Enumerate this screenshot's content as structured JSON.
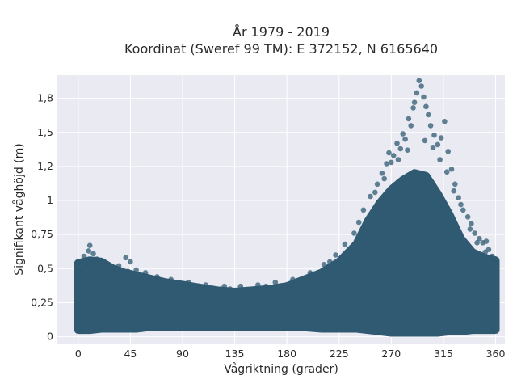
{
  "chart_data": {
    "type": "scatter",
    "title": "År 1979 - 2019",
    "subtitle": "Koordinat (Sweref 99 TM): E 372152, N 6165640",
    "xlabel": "Vågriktning (grader)",
    "ylabel": "Signifikant våghöjd (m)",
    "xlim": [
      -18,
      368
    ],
    "ylim": [
      -0.05,
      1.92
    ],
    "x_ticks": [
      0,
      45,
      90,
      135,
      180,
      225,
      270,
      315,
      360
    ],
    "x_tick_labels": [
      "0",
      "45",
      "90",
      "135",
      "180",
      "225",
      "270",
      "315",
      "360"
    ],
    "y_ticks": [
      0,
      0.25,
      0.5,
      0.75,
      1,
      1.25,
      1.5,
      1.75
    ],
    "y_tick_labels": [
      "0",
      "0,25",
      "0,5",
      "0,75",
      "1",
      "1,2",
      "1,5",
      "1,8"
    ],
    "grid": true,
    "marker_color": "#2f5a72",
    "plot_background": "#eaeaf2",
    "envelope": {
      "direction": [
        0,
        10,
        20,
        30,
        40,
        50,
        60,
        75,
        90,
        105,
        120,
        135,
        150,
        165,
        180,
        195,
        210,
        225,
        240,
        250,
        260,
        270,
        280,
        290,
        300,
        310,
        320,
        330,
        340,
        350,
        360
      ],
      "upper_hs": [
        0.54,
        0.56,
        0.55,
        0.5,
        0.47,
        0.45,
        0.43,
        0.4,
        0.38,
        0.36,
        0.34,
        0.33,
        0.34,
        0.35,
        0.37,
        0.42,
        0.47,
        0.55,
        0.68,
        0.85,
        0.98,
        1.08,
        1.15,
        1.2,
        1.18,
        1.05,
        0.9,
        0.72,
        0.62,
        0.58,
        0.56
      ],
      "lower_hs": [
        0.05,
        0.05,
        0.06,
        0.06,
        0.06,
        0.06,
        0.07,
        0.07,
        0.07,
        0.07,
        0.07,
        0.07,
        0.07,
        0.07,
        0.07,
        0.07,
        0.06,
        0.06,
        0.06,
        0.05,
        0.04,
        0.03,
        0.03,
        0.03,
        0.03,
        0.03,
        0.04,
        0.04,
        0.05,
        0.05,
        0.05
      ]
    },
    "points": [
      {
        "x": 0,
        "y": 0.55
      },
      {
        "x": 5,
        "y": 0.59
      },
      {
        "x": 9,
        "y": 0.63
      },
      {
        "x": 10,
        "y": 0.67
      },
      {
        "x": 13,
        "y": 0.61
      },
      {
        "x": 16,
        "y": 0.57
      },
      {
        "x": 18,
        "y": 0.52
      },
      {
        "x": 22,
        "y": 0.55
      },
      {
        "x": 25,
        "y": 0.51
      },
      {
        "x": 30,
        "y": 0.49
      },
      {
        "x": 35,
        "y": 0.52
      },
      {
        "x": 41,
        "y": 0.58
      },
      {
        "x": 45,
        "y": 0.55
      },
      {
        "x": 50,
        "y": 0.49
      },
      {
        "x": 58,
        "y": 0.47
      },
      {
        "x": 68,
        "y": 0.44
      },
      {
        "x": 80,
        "y": 0.42
      },
      {
        "x": 95,
        "y": 0.4
      },
      {
        "x": 110,
        "y": 0.38
      },
      {
        "x": 126,
        "y": 0.37
      },
      {
        "x": 140,
        "y": 0.37
      },
      {
        "x": 155,
        "y": 0.38
      },
      {
        "x": 170,
        "y": 0.4
      },
      {
        "x": 185,
        "y": 0.42
      },
      {
        "x": 200,
        "y": 0.47
      },
      {
        "x": 212,
        "y": 0.53
      },
      {
        "x": 222,
        "y": 0.6
      },
      {
        "x": 230,
        "y": 0.68
      },
      {
        "x": 238,
        "y": 0.76
      },
      {
        "x": 246,
        "y": 0.93
      },
      {
        "x": 252,
        "y": 1.03
      },
      {
        "x": 258,
        "y": 1.12
      },
      {
        "x": 262,
        "y": 1.2
      },
      {
        "x": 266,
        "y": 1.27
      },
      {
        "x": 268,
        "y": 1.35
      },
      {
        "x": 272,
        "y": 1.33
      },
      {
        "x": 275,
        "y": 1.42
      },
      {
        "x": 278,
        "y": 1.38
      },
      {
        "x": 280,
        "y": 1.49
      },
      {
        "x": 282,
        "y": 1.45
      },
      {
        "x": 285,
        "y": 1.6
      },
      {
        "x": 287,
        "y": 1.55
      },
      {
        "x": 289,
        "y": 1.68
      },
      {
        "x": 290,
        "y": 1.72
      },
      {
        "x": 292,
        "y": 1.79
      },
      {
        "x": 294,
        "y": 1.88
      },
      {
        "x": 296,
        "y": 1.84
      },
      {
        "x": 298,
        "y": 1.76
      },
      {
        "x": 300,
        "y": 1.69
      },
      {
        "x": 302,
        "y": 1.63
      },
      {
        "x": 304,
        "y": 1.55
      },
      {
        "x": 307,
        "y": 1.48
      },
      {
        "x": 310,
        "y": 1.41
      },
      {
        "x": 313,
        "y": 1.46
      },
      {
        "x": 316,
        "y": 1.58
      },
      {
        "x": 319,
        "y": 1.36
      },
      {
        "x": 322,
        "y": 1.23
      },
      {
        "x": 325,
        "y": 1.12
      },
      {
        "x": 328,
        "y": 1.02
      },
      {
        "x": 332,
        "y": 0.93
      },
      {
        "x": 336,
        "y": 0.88
      },
      {
        "x": 339,
        "y": 0.83
      },
      {
        "x": 342,
        "y": 0.76
      },
      {
        "x": 346,
        "y": 0.72
      },
      {
        "x": 349,
        "y": 0.69
      },
      {
        "x": 352,
        "y": 0.7
      },
      {
        "x": 354,
        "y": 0.64
      },
      {
        "x": 357,
        "y": 0.59
      },
      {
        "x": 359,
        "y": 0.56
      },
      {
        "x": 3,
        "y": 0.49
      },
      {
        "x": 7,
        "y": 0.52
      },
      {
        "x": 12,
        "y": 0.55
      },
      {
        "x": 28,
        "y": 0.46
      },
      {
        "x": 38,
        "y": 0.47
      },
      {
        "x": 43,
        "y": 0.48
      },
      {
        "x": 62,
        "y": 0.42
      },
      {
        "x": 104,
        "y": 0.37
      },
      {
        "x": 131,
        "y": 0.35
      },
      {
        "x": 162,
        "y": 0.37
      },
      {
        "x": 193,
        "y": 0.41
      },
      {
        "x": 217,
        "y": 0.55
      },
      {
        "x": 242,
        "y": 0.84
      },
      {
        "x": 256,
        "y": 1.06
      },
      {
        "x": 264,
        "y": 1.16
      },
      {
        "x": 270,
        "y": 1.28
      },
      {
        "x": 276,
        "y": 1.3
      },
      {
        "x": 284,
        "y": 1.37
      },
      {
        "x": 299,
        "y": 1.44
      },
      {
        "x": 306,
        "y": 1.39
      },
      {
        "x": 312,
        "y": 1.3
      },
      {
        "x": 318,
        "y": 1.21
      },
      {
        "x": 324,
        "y": 1.07
      },
      {
        "x": 330,
        "y": 0.97
      },
      {
        "x": 338,
        "y": 0.79
      },
      {
        "x": 344,
        "y": 0.69
      },
      {
        "x": 351,
        "y": 0.62
      },
      {
        "x": 356,
        "y": 0.58
      },
      {
        "x": 2,
        "y": 0.04
      },
      {
        "x": 20,
        "y": 0.05
      },
      {
        "x": 60,
        "y": 0.06
      },
      {
        "x": 120,
        "y": 0.06
      },
      {
        "x": 180,
        "y": 0.06
      },
      {
        "x": 230,
        "y": 0.05
      },
      {
        "x": 260,
        "y": 0.03
      },
      {
        "x": 280,
        "y": 0.02
      },
      {
        "x": 300,
        "y": 0.02
      },
      {
        "x": 320,
        "y": 0.03
      },
      {
        "x": 340,
        "y": 0.04
      },
      {
        "x": 358,
        "y": 0.05
      }
    ]
  }
}
